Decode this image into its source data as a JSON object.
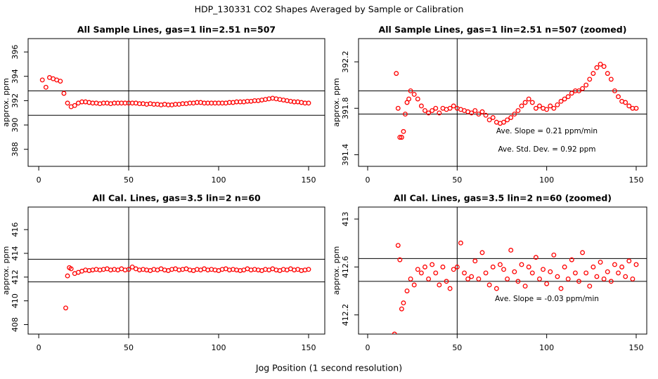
{
  "title": "HDP_130331  CO2 Shapes Averaged by Sample or Calibration",
  "xlabel": "Jog Position (1 second resolution)",
  "chart_data": [
    {
      "type": "scatter",
      "title": "All Sample Lines, gas=1 lin=2.51 n=507",
      "ylabel": "approx. ppm",
      "color": "#ff0000",
      "xlim": [
        -5.9,
        159
      ],
      "ylim": [
        386.6,
        397.1
      ],
      "xticks": [
        0,
        50,
        100,
        150
      ],
      "yticks": [
        388,
        390,
        392,
        394,
        396
      ],
      "vline": 50,
      "hlines": [
        392.8,
        390.8
      ],
      "annotations": [],
      "x": [
        2,
        4,
        6,
        8,
        10,
        12,
        14,
        16,
        18,
        20,
        22,
        24,
        26,
        28,
        30,
        32,
        34,
        36,
        38,
        40,
        42,
        44,
        46,
        48,
        50,
        52,
        54,
        56,
        58,
        60,
        62,
        64,
        66,
        68,
        70,
        72,
        74,
        76,
        78,
        80,
        82,
        84,
        86,
        88,
        90,
        92,
        94,
        96,
        98,
        100,
        102,
        104,
        106,
        108,
        110,
        112,
        114,
        116,
        118,
        120,
        122,
        124,
        126,
        128,
        130,
        132,
        134,
        136,
        138,
        140,
        142,
        144,
        146,
        148,
        150
      ],
      "values": [
        393.7,
        393.1,
        393.9,
        393.8,
        393.7,
        393.6,
        392.6,
        391.8,
        391.5,
        391.6,
        391.8,
        391.9,
        391.9,
        391.85,
        391.8,
        391.8,
        391.75,
        391.8,
        391.8,
        391.75,
        391.8,
        391.8,
        391.8,
        391.8,
        391.8,
        391.8,
        391.8,
        391.75,
        391.75,
        391.7,
        391.75,
        391.7,
        391.7,
        391.65,
        391.7,
        391.65,
        391.65,
        391.7,
        391.7,
        391.75,
        391.75,
        391.8,
        391.8,
        391.85,
        391.85,
        391.8,
        391.8,
        391.8,
        391.8,
        391.8,
        391.8,
        391.8,
        391.85,
        391.85,
        391.9,
        391.9,
        391.9,
        391.95,
        391.95,
        392.0,
        392.0,
        392.05,
        392.1,
        392.15,
        392.2,
        392.15,
        392.1,
        392.05,
        392.0,
        391.95,
        391.9,
        391.9,
        391.85,
        391.8,
        391.8
      ]
    },
    {
      "type": "scatter",
      "title": "All Sample Lines, gas=1 lin=2.51 n=507 (zoomed)",
      "ylabel": "approx. ppm",
      "color": "#ff0000",
      "xlim": [
        -5.1,
        155.9
      ],
      "ylim": [
        391.3,
        392.4
      ],
      "xticks": [
        0,
        50,
        100,
        150
      ],
      "yticks": [
        391.4,
        391.8,
        392.2
      ],
      "vline": 50,
      "hlines": [
        391.95,
        391.75
      ],
      "annotations": [
        "Ave. Slope =  0.21  ppm/min",
        "Ave. Std. Dev. =  0.92  ppm"
      ],
      "x": [
        16,
        17,
        18,
        19,
        20,
        21,
        22,
        23,
        24,
        26,
        28,
        30,
        32,
        34,
        36,
        38,
        40,
        42,
        44,
        46,
        48,
        50,
        52,
        54,
        56,
        58,
        60,
        62,
        64,
        66,
        68,
        70,
        72,
        74,
        76,
        78,
        80,
        82,
        84,
        86,
        88,
        90,
        92,
        94,
        96,
        98,
        100,
        102,
        104,
        106,
        108,
        110,
        112,
        114,
        116,
        118,
        120,
        122,
        124,
        126,
        128,
        130,
        132,
        134,
        136,
        138,
        140,
        142,
        144,
        146,
        148,
        150
      ],
      "values": [
        392.1,
        391.8,
        391.55,
        391.55,
        391.6,
        391.75,
        391.85,
        391.88,
        391.95,
        391.92,
        391.88,
        391.82,
        391.78,
        391.76,
        391.78,
        391.8,
        391.76,
        391.8,
        391.79,
        391.8,
        391.82,
        391.8,
        391.79,
        391.78,
        391.77,
        391.76,
        391.78,
        391.75,
        391.77,
        391.74,
        391.7,
        391.72,
        391.68,
        391.67,
        391.68,
        391.7,
        391.72,
        391.75,
        391.78,
        391.82,
        391.85,
        391.88,
        391.85,
        391.8,
        391.82,
        391.8,
        391.79,
        391.82,
        391.8,
        391.83,
        391.86,
        391.88,
        391.9,
        391.93,
        391.95,
        391.95,
        391.97,
        392.0,
        392.05,
        392.1,
        392.15,
        392.18,
        392.16,
        392.1,
        392.05,
        391.95,
        391.9,
        391.86,
        391.85,
        391.82,
        391.8,
        391.8
      ]
    },
    {
      "type": "scatter",
      "title": "All Cal. Lines, gas=3.5 lin=2 n=60",
      "ylabel": "approx. ppm",
      "color": "#ff0000",
      "xlim": [
        -5.9,
        159
      ],
      "ylim": [
        407.2,
        417.9
      ],
      "xticks": [
        0,
        50,
        100,
        150
      ],
      "yticks": [
        408,
        410,
        412,
        414,
        416
      ],
      "vline": 50,
      "hlines": [
        413.5,
        411.6
      ],
      "annotations": [],
      "x": [
        15,
        16,
        17,
        18,
        20,
        22,
        24,
        26,
        28,
        30,
        32,
        34,
        36,
        38,
        40,
        42,
        44,
        46,
        48,
        50,
        52,
        54,
        56,
        58,
        60,
        62,
        64,
        66,
        68,
        70,
        72,
        74,
        76,
        78,
        80,
        82,
        84,
        86,
        88,
        90,
        92,
        94,
        96,
        98,
        100,
        102,
        104,
        106,
        108,
        110,
        112,
        114,
        116,
        118,
        120,
        122,
        124,
        126,
        128,
        130,
        132,
        134,
        136,
        138,
        140,
        142,
        144,
        146,
        148,
        150
      ],
      "values": [
        409.4,
        412.1,
        412.8,
        412.7,
        412.3,
        412.4,
        412.5,
        412.6,
        412.55,
        412.6,
        412.65,
        412.6,
        412.65,
        412.7,
        412.6,
        412.65,
        412.6,
        412.7,
        412.6,
        412.65,
        412.85,
        412.7,
        412.6,
        412.65,
        412.6,
        412.55,
        412.65,
        412.6,
        412.7,
        412.6,
        412.55,
        412.65,
        412.7,
        412.6,
        412.65,
        412.7,
        412.6,
        412.55,
        412.65,
        412.6,
        412.7,
        412.6,
        412.65,
        412.6,
        412.55,
        412.65,
        412.7,
        412.6,
        412.65,
        412.6,
        412.55,
        412.6,
        412.7,
        412.6,
        412.65,
        412.6,
        412.55,
        412.65,
        412.6,
        412.7,
        412.6,
        412.55,
        412.65,
        412.6,
        412.7,
        412.6,
        412.65,
        412.55,
        412.6,
        412.65
      ]
    },
    {
      "type": "scatter",
      "title": "All Cal. Lines, gas=3.5 lin=2 n=60 (zoomed)",
      "ylabel": "approx. ppm",
      "color": "#ff0000",
      "xlim": [
        -5.1,
        155.9
      ],
      "ylim": [
        412.04,
        413.1
      ],
      "xticks": [
        0,
        50,
        100,
        150
      ],
      "yticks": [
        412.2,
        412.6,
        413.0
      ],
      "vline": 50,
      "hlines": [
        412.67,
        412.48
      ],
      "annotations": [
        "Ave. Slope =  -0.03  ppm/min"
      ],
      "x": [
        15,
        17,
        18,
        19,
        20,
        22,
        24,
        26,
        28,
        30,
        32,
        34,
        36,
        38,
        40,
        42,
        44,
        46,
        48,
        50,
        52,
        54,
        56,
        58,
        60,
        62,
        64,
        66,
        68,
        70,
        72,
        74,
        76,
        78,
        80,
        82,
        84,
        86,
        88,
        90,
        92,
        94,
        96,
        98,
        100,
        102,
        104,
        106,
        108,
        110,
        112,
        114,
        116,
        118,
        120,
        122,
        124,
        126,
        128,
        130,
        132,
        134,
        136,
        138,
        140,
        142,
        144,
        146,
        148,
        150
      ],
      "values": [
        412.04,
        412.78,
        412.66,
        412.25,
        412.3,
        412.4,
        412.5,
        412.45,
        412.58,
        412.55,
        412.6,
        412.5,
        412.62,
        412.55,
        412.45,
        412.6,
        412.48,
        412.42,
        412.58,
        412.6,
        412.8,
        412.55,
        412.5,
        412.52,
        412.65,
        412.5,
        412.72,
        412.55,
        412.45,
        412.6,
        412.42,
        412.62,
        412.58,
        412.5,
        412.74,
        412.56,
        412.48,
        412.62,
        412.44,
        412.6,
        412.55,
        412.68,
        412.5,
        412.58,
        412.46,
        412.56,
        412.7,
        412.52,
        412.42,
        412.6,
        412.5,
        412.66,
        412.55,
        412.48,
        412.72,
        412.55,
        412.44,
        412.6,
        412.52,
        412.64,
        412.5,
        412.56,
        412.48,
        412.62,
        412.55,
        412.6,
        412.52,
        412.65,
        412.5,
        412.62
      ]
    }
  ]
}
